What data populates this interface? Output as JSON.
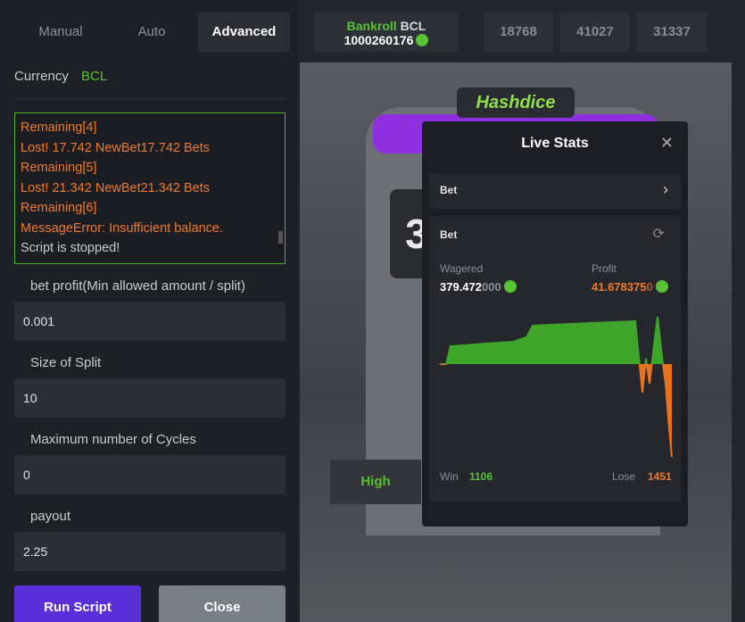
{
  "tabs": [
    "Manual",
    "Auto",
    "Advanced"
  ],
  "bankroll": {
    "label": "Bankroll",
    "currency": "BCL",
    "amount": "1000260176"
  },
  "header_numbers": [
    18768,
    41027,
    31337
  ],
  "currency": {
    "label": "Currency",
    "value": "BCL"
  },
  "log": [
    "Remaining[4]",
    "Lost! 17.742 NewBet17.742 Bets",
    "Remaining[5]",
    "Lost! 21.342 NewBet21.342 Bets",
    "Remaining[6]",
    "MessageError: Insufficient balance.",
    "Script is stopped!"
  ],
  "fields": [
    {
      "label": "bet profit(Min allowed amount / split)",
      "value": "0.001"
    },
    {
      "label": "Size of Split",
      "value": "10"
    },
    {
      "label": "Maximum number of Cycles",
      "value": "0"
    },
    {
      "label": "payout",
      "value": "2.25"
    }
  ],
  "buttons": [
    "Run Script",
    "Close"
  ],
  "game": {
    "logo": "Hashdice",
    "slot_digit": "3",
    "high": "High"
  },
  "live_stats": {
    "title": "Live Stats",
    "dropdown": "Bet",
    "section": "Bet",
    "wagered_label": "Wagered",
    "wagered": "379.472",
    "wagered_pad": "000",
    "profit_label": "Profit",
    "profit": "41.678375",
    "profit_pad": "0",
    "win_label": "Win",
    "win": 1106,
    "lose_label": "Lose",
    "lose": 1451,
    "chart": {
      "type": "line",
      "x": [
        0,
        7,
        12,
        52,
        82,
        97,
        104,
        167,
        219,
        223,
        227,
        231,
        235,
        239,
        244,
        249,
        253,
        257,
        260
      ],
      "values": [
        0,
        0,
        20,
        23,
        25,
        30,
        43,
        46,
        48,
        8,
        -32,
        6,
        -22,
        13,
        53,
        8,
        -22,
        -72,
        -104
      ],
      "colors": {
        "positive": "#3fa52a",
        "negative": "#e8731e"
      }
    }
  }
}
